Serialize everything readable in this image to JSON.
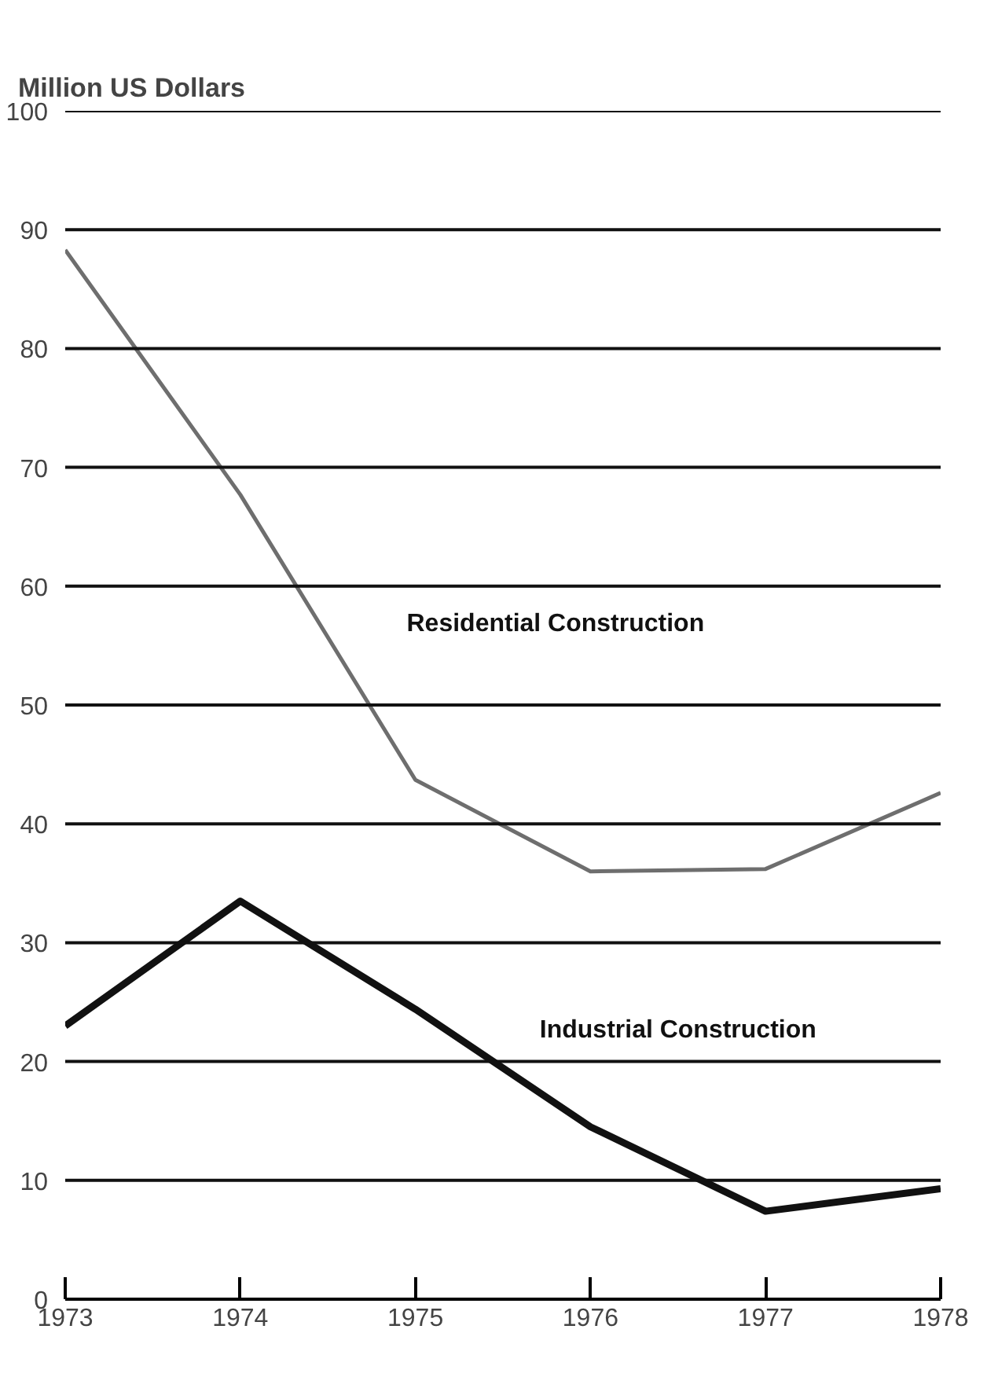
{
  "chart_data": {
    "type": "line",
    "ylabel": "Million US Dollars",
    "x": [
      1973,
      1974,
      1975,
      1976,
      1977,
      1978
    ],
    "series": [
      {
        "name": "Residential Construction",
        "color": "#6e6e6e",
        "values": [
          88.3,
          67.7,
          43.7,
          36,
          36.2,
          42.6
        ]
      },
      {
        "name": "Industrial Construction",
        "color": "#111111",
        "values": [
          23,
          33.5,
          24.4,
          14.5,
          7.4,
          9.3
        ]
      }
    ],
    "xlim": [
      1973,
      1978
    ],
    "xticks": [
      1973,
      1974,
      1975,
      1976,
      1977,
      1978
    ],
    "ylim": [
      0,
      100
    ],
    "yticks": [
      0,
      10,
      20,
      30,
      40,
      50,
      60,
      70,
      80,
      90,
      100
    ],
    "grid": "y",
    "marker": "none",
    "line_style": "solid"
  }
}
